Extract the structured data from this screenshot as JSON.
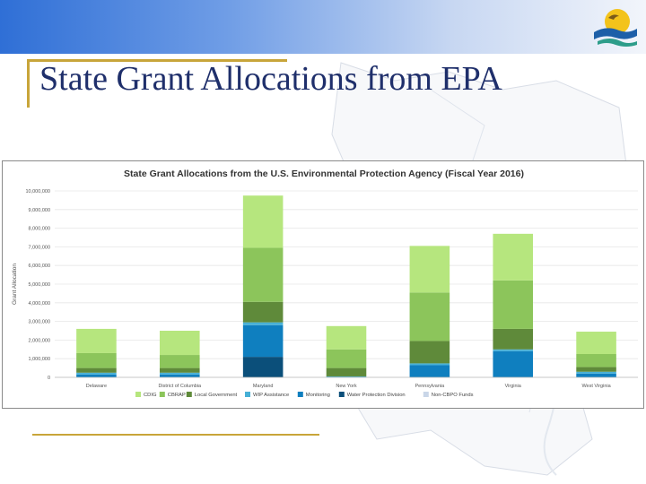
{
  "slide": {
    "title": "State Grant Allocations from EPA"
  },
  "colors": {
    "series": [
      "#b6e67e",
      "#8cc55b",
      "#5f8a3a",
      "#47b0d6",
      "#0f7fbf",
      "#0b4f7a",
      "#c9d6e8"
    ]
  },
  "chart_data": {
    "type": "bar",
    "stacked": true,
    "title": "State Grant Allocations from the U.S. Environmental Protection Agency (Fiscal Year 2016)",
    "xlabel": "",
    "ylabel": "Grant Allocation",
    "ylim": [
      0,
      10000000
    ],
    "yticks": [
      0,
      1000000,
      2000000,
      3000000,
      4000000,
      5000000,
      6000000,
      7000000,
      8000000,
      9000000,
      10000000
    ],
    "ytick_labels": [
      "0",
      "1,000,000",
      "2,000,000",
      "3,000,000",
      "4,000,000",
      "5,000,000",
      "6,000,000",
      "7,000,000",
      "8,000,000",
      "9,000,000",
      "10,000,000"
    ],
    "grid": true,
    "legend_position": "bottom",
    "categories": [
      "Delaware",
      "District of Columbia",
      "Maryland",
      "New York",
      "Pennsylvania",
      "Virginia",
      "West Virginia"
    ],
    "series": [
      {
        "name": "Water Protection Division",
        "values": [
          0,
          0,
          1100000,
          0,
          0,
          0,
          0
        ]
      },
      {
        "name": "Monitoring",
        "values": [
          150000,
          150000,
          1700000,
          0,
          650000,
          1400000,
          200000
        ]
      },
      {
        "name": "WIP Assistance",
        "values": [
          100000,
          100000,
          150000,
          50000,
          100000,
          100000,
          100000
        ]
      },
      {
        "name": "Local Government",
        "values": [
          250000,
          250000,
          1100000,
          450000,
          1200000,
          1100000,
          250000
        ]
      },
      {
        "name": "CBRAP",
        "values": [
          800000,
          700000,
          2900000,
          1000000,
          2600000,
          2600000,
          700000
        ]
      },
      {
        "name": "CDIG",
        "values": [
          1300000,
          1300000,
          2800000,
          1250000,
          2500000,
          2500000,
          1200000
        ]
      },
      {
        "name": "Non-CBPO Funds",
        "values": [
          0,
          0,
          0,
          0,
          0,
          0,
          0
        ]
      }
    ],
    "legend_order": [
      "CDIG",
      "CBRAP",
      "Local Government",
      "WIP Assistance",
      "Monitoring",
      "Water Protection Division",
      "Non-CBPO Funds"
    ]
  }
}
